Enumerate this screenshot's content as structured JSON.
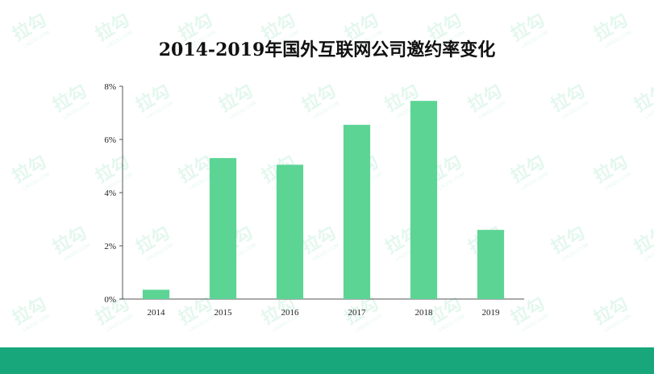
{
  "chart_data": {
    "type": "bar",
    "title": "2014-2019年国外互联网公司邀约率变化",
    "categories": [
      "2014",
      "2015",
      "2016",
      "2017",
      "2018",
      "2019"
    ],
    "values": [
      0.35,
      5.3,
      5.05,
      6.55,
      7.45,
      2.6
    ],
    "y_ticks": [
      "0%",
      "2%",
      "4%",
      "6%",
      "8%"
    ],
    "ylim": [
      0,
      8
    ],
    "y_unit": "%",
    "xlabel": "",
    "ylabel": "",
    "grid": false,
    "legend": "none"
  },
  "watermark": {
    "text": "拉勾",
    "subtext": "LAGOU.COM"
  },
  "colors": {
    "bar": "#5cd494",
    "footer": "#17a77a",
    "axis": "#555555",
    "watermark": "#2bbf7a"
  }
}
